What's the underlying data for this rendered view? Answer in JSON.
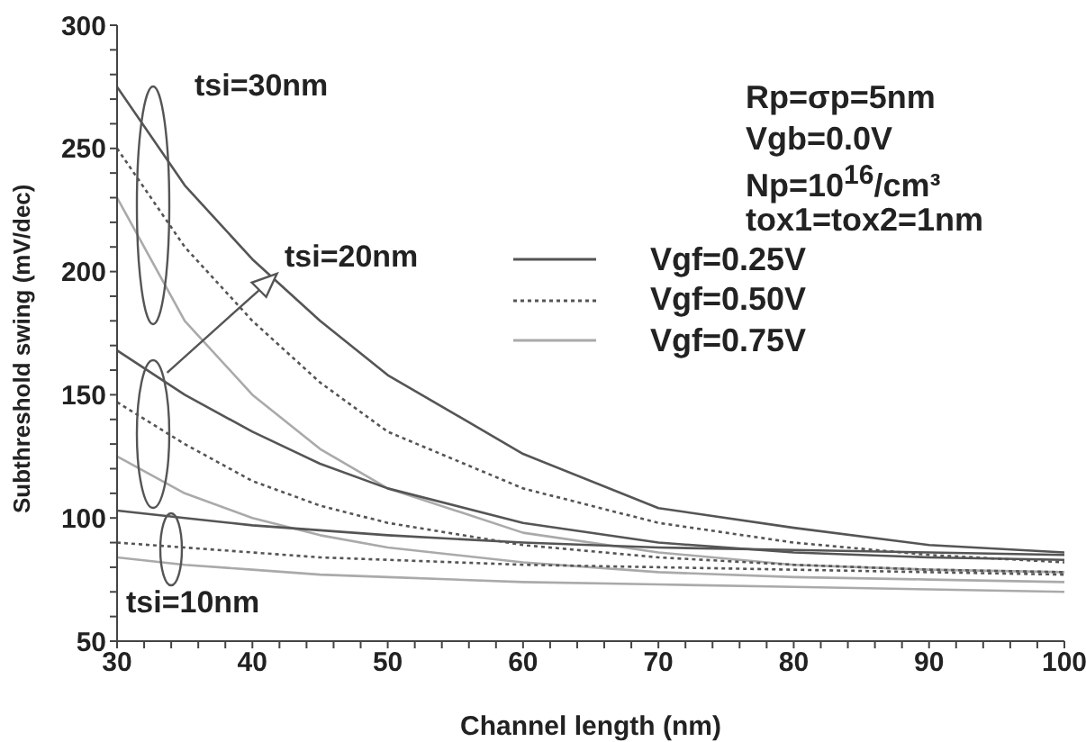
{
  "chart_data": {
    "type": "line",
    "xlabel": "Channel length (nm)",
    "ylabel": "Subthreshold swing (mV/dec)",
    "x": [
      30,
      35,
      40,
      45,
      50,
      60,
      70,
      80,
      90,
      100
    ],
    "xlim": [
      30,
      100
    ],
    "ylim": [
      50,
      300
    ],
    "xticks": [
      30,
      {
        "value": 32,
        "label": null
      },
      {
        "value": 34,
        "label": null
      },
      {
        "value": 36,
        "label": null
      },
      {
        "value": 38,
        "label": null
      },
      40,
      {
        "value": 42,
        "label": null
      },
      {
        "value": 44,
        "label": null
      },
      {
        "value": 46,
        "label": null
      },
      {
        "value": 48,
        "label": null
      },
      50,
      {
        "value": 52,
        "label": null
      },
      {
        "value": 54,
        "label": null
      },
      {
        "value": 56,
        "label": null
      },
      {
        "value": 58,
        "label": null
      },
      60,
      {
        "value": 62,
        "label": null
      },
      {
        "value": 64,
        "label": null
      },
      {
        "value": 66,
        "label": null
      },
      {
        "value": 68,
        "label": null
      },
      70,
      {
        "value": 72,
        "label": null
      },
      {
        "value": 74,
        "label": null
      },
      {
        "value": 76,
        "label": null
      },
      {
        "value": 78,
        "label": null
      },
      80,
      {
        "value": 82,
        "label": null
      },
      {
        "value": 84,
        "label": null
      },
      {
        "value": 86,
        "label": null
      },
      {
        "value": 88,
        "label": null
      },
      90,
      {
        "value": 92,
        "label": null
      },
      {
        "value": 94,
        "label": null
      },
      {
        "value": 96,
        "label": null
      },
      {
        "value": 98,
        "label": null
      },
      100
    ],
    "yticks": [
      50,
      {
        "value": 60,
        "label": null
      },
      {
        "value": 70,
        "label": null
      },
      {
        "value": 80,
        "label": null
      },
      {
        "value": 90,
        "label": null
      },
      100,
      {
        "value": 110,
        "label": null
      },
      {
        "value": 120,
        "label": null
      },
      {
        "value": 130,
        "label": null
      },
      {
        "value": 140,
        "label": null
      },
      150,
      {
        "value": 160,
        "label": null
      },
      {
        "value": 170,
        "label": null
      },
      {
        "value": 180,
        "label": null
      },
      {
        "value": 190,
        "label": null
      },
      200,
      {
        "value": 210,
        "label": null
      },
      {
        "value": 220,
        "label": null
      },
      {
        "value": 230,
        "label": null
      },
      {
        "value": 240,
        "label": null
      },
      250,
      {
        "value": 260,
        "label": null
      },
      {
        "value": 270,
        "label": null
      },
      {
        "value": 280,
        "label": null
      },
      {
        "value": 290,
        "label": null
      },
      300
    ],
    "grid": false,
    "legend": "top right",
    "marker": "none",
    "series": [
      {
        "name": "Vgf=0.25V",
        "color": "#555555",
        "line_style": "solid",
        "values": [
          275,
          235,
          205,
          180,
          158,
          126,
          104,
          96,
          89,
          86
        ]
      },
      {
        "name": "Vgf=0.50V",
        "color": "#555555",
        "line_style": "dotted",
        "values": [
          250,
          210,
          180,
          155,
          135,
          112,
          98,
          90,
          85,
          82
        ]
      },
      {
        "name": "Vgf=0.75V",
        "color": "#aaaaaa",
        "line_style": "solid",
        "values": [
          230,
          180,
          150,
          128,
          112,
          94,
          86,
          81,
          79,
          78
        ]
      },
      {
        "color": "#555555",
        "line_style": "solid",
        "values": [
          168,
          150,
          135,
          122,
          112,
          98,
          90,
          86,
          84,
          83
        ]
      },
      {
        "color": "#555555",
        "line_style": "dotted",
        "values": [
          147,
          130,
          115,
          105,
          98,
          89,
          84,
          81,
          79,
          78
        ]
      },
      {
        "color": "#aaaaaa",
        "line_style": "solid",
        "values": [
          125,
          110,
          100,
          93,
          88,
          82,
          78,
          76,
          75,
          74
        ]
      },
      {
        "color": "#555555",
        "line_style": "solid",
        "values": [
          103,
          100,
          97,
          95,
          93,
          90,
          88,
          87,
          86,
          85
        ]
      },
      {
        "color": "#555555",
        "line_style": "dotted",
        "values": [
          90,
          88,
          86,
          84,
          83,
          81,
          80,
          79,
          78,
          77
        ]
      },
      {
        "color": "#aaaaaa",
        "line_style": "solid",
        "values": [
          84,
          81,
          79,
          77,
          76,
          74,
          73,
          72,
          71,
          70
        ]
      }
    ],
    "annotations": [
      "tsi=30nm",
      {
        "text": "tsi=20nm",
        "x": 33.7,
        "y": 159
      },
      "tsi=10nm",
      "Rp=σp=5nm",
      "Vgb=0.0V",
      "Np=10$^{16}$/cm³",
      "tox1=tox2=1nm"
    ]
  }
}
